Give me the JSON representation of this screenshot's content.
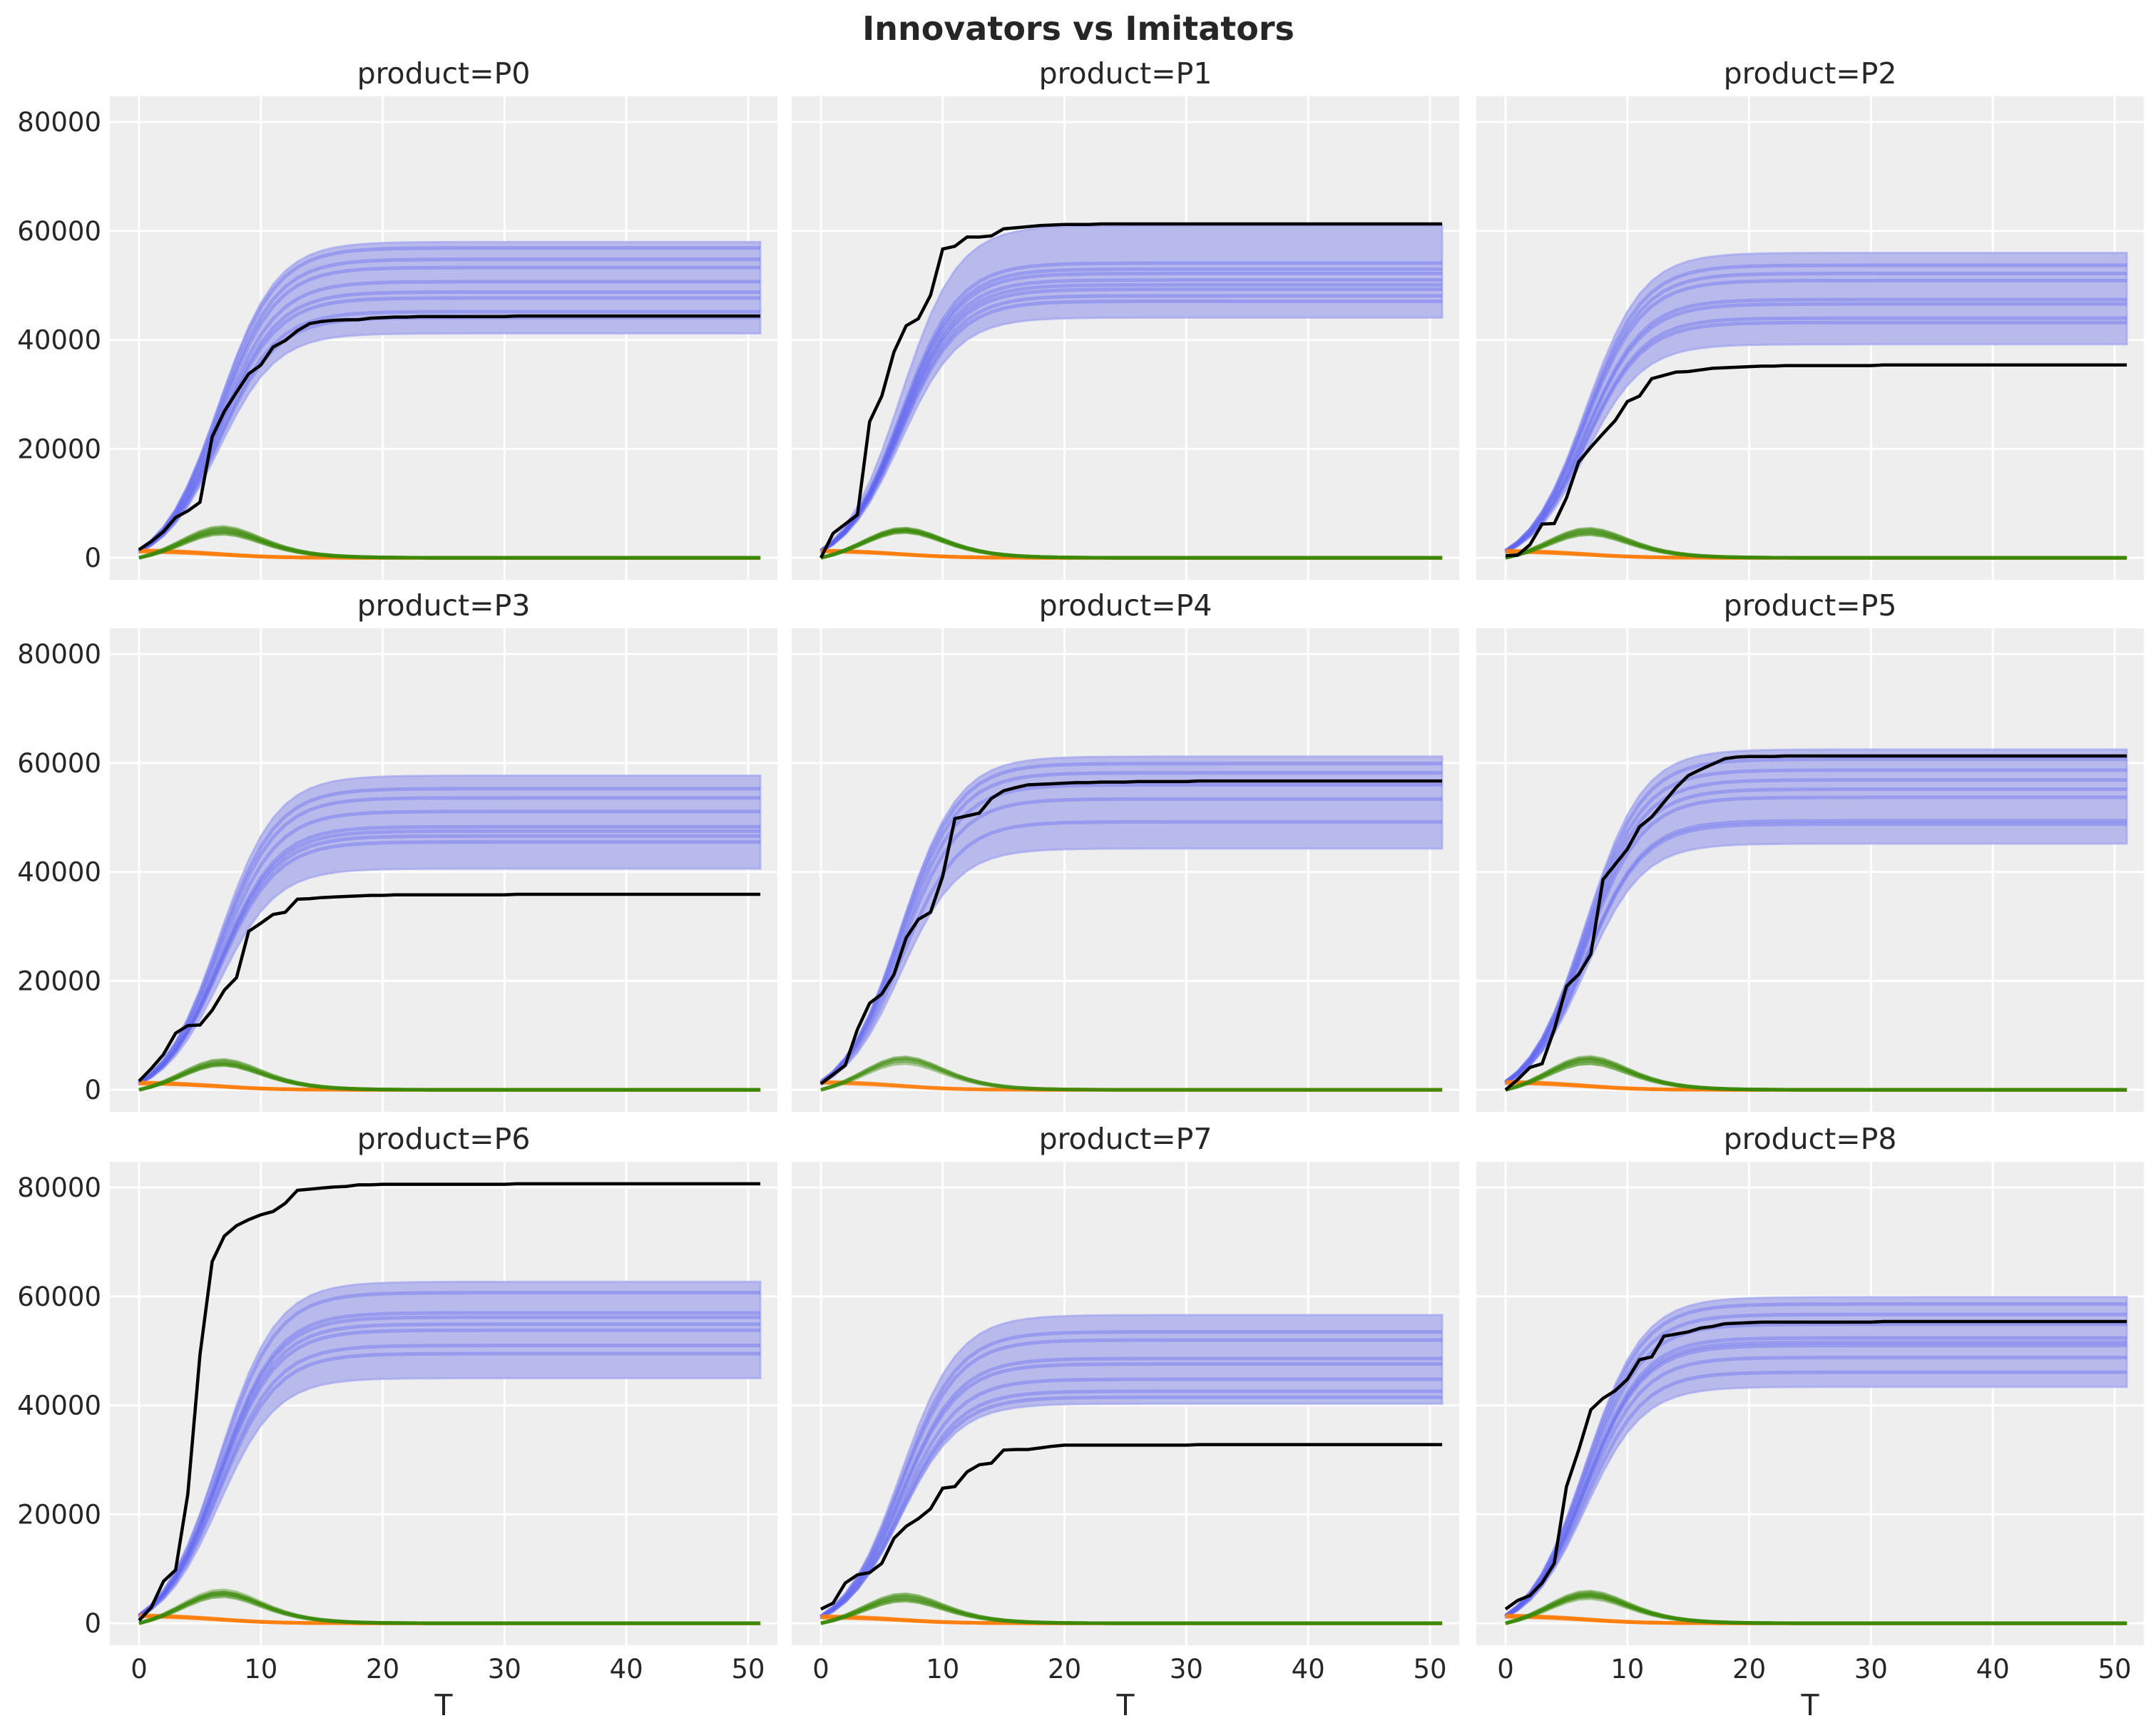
{
  "chart_data": {
    "type": "line",
    "title": "Innovators vs Imitators",
    "xlabel": "T",
    "ylabel": "",
    "xlim": [
      -2.4,
      52.4
    ],
    "ylim": [
      -4035,
      84735
    ],
    "xticks": [
      0,
      10,
      20,
      30,
      40,
      50
    ],
    "yticks": [
      0,
      20000,
      40000,
      60000,
      80000
    ],
    "grid": true,
    "legend": "none",
    "colors": {
      "background": "#eeeeee",
      "grid": "#ffffff",
      "posterior_band": "#b9baec",
      "posterior_samples": "#5a5ff0",
      "observed": "#000000",
      "imitators": "#3a8a07",
      "innovators": "#ff7f0e"
    },
    "panels": [
      {
        "title": "product=P0",
        "observed": [
          1500,
          3000,
          4800,
          7400,
          8600,
          10200,
          22200,
          26900,
          30400,
          33800,
          35400,
          38700,
          39900,
          41700,
          43000,
          43400,
          43600,
          43700,
          43700,
          44000,
          44100,
          44200,
          44200,
          44300,
          44300,
          44300,
          44300,
          44300,
          44300,
          44300,
          44300,
          44400,
          44400,
          44400,
          44400,
          44400,
          44400,
          44400,
          44400,
          44400,
          44400,
          44400,
          44400,
          44400,
          44400,
          44400,
          44400,
          44400,
          44400,
          44400,
          44400,
          44400
        ],
        "posterior_final_values": [
          56900,
          54800,
          53300,
          50700,
          48800,
          47700,
          45200,
          44100
        ],
        "hdi_final": [
          41200,
          58000
        ]
      },
      {
        "title": "product=P1",
        "observed": [
          0,
          4500,
          6200,
          7900,
          25000,
          29700,
          37800,
          42600,
          43900,
          48200,
          56700,
          57200,
          58900,
          58900,
          59100,
          60400,
          60600,
          60800,
          61000,
          61100,
          61200,
          61200,
          61200,
          61300,
          61300,
          61300,
          61300,
          61300,
          61300,
          61300,
          61300,
          61300,
          61300,
          61300,
          61300,
          61300,
          61300,
          61300,
          61300,
          61300,
          61300,
          61300,
          61300,
          61300,
          61300,
          61300,
          61300,
          61300,
          61300,
          61300,
          61300,
          61300
        ],
        "posterior_final_values": [
          54100,
          53000,
          52200,
          51000,
          50100,
          49300,
          48100,
          47100
        ],
        "hdi_final": [
          44100,
          61000
        ]
      },
      {
        "title": "product=P2",
        "observed": [
          400,
          500,
          2400,
          6200,
          6300,
          11000,
          17600,
          20300,
          22800,
          25200,
          28700,
          29700,
          32900,
          33500,
          34100,
          34200,
          34500,
          34800,
          34900,
          35000,
          35100,
          35200,
          35200,
          35300,
          35300,
          35300,
          35300,
          35300,
          35300,
          35300,
          35300,
          35400,
          35400,
          35400,
          35400,
          35400,
          35400,
          35400,
          35400,
          35400,
          35400,
          35400,
          35400,
          35400,
          35400,
          35400,
          35400,
          35400,
          35400,
          35400,
          35400,
          35400
        ],
        "posterior_final_values": [
          53700,
          52200,
          50900,
          47400,
          46600,
          44000,
          43200
        ],
        "hdi_final": [
          39200,
          56000
        ]
      },
      {
        "title": "product=P3",
        "observed": [
          1600,
          3900,
          6500,
          10400,
          11800,
          11900,
          14600,
          18300,
          20600,
          29100,
          30600,
          32200,
          32600,
          35000,
          35100,
          35300,
          35400,
          35500,
          35600,
          35700,
          35700,
          35800,
          35800,
          35800,
          35800,
          35800,
          35800,
          35800,
          35800,
          35800,
          35800,
          35900,
          35900,
          35900,
          35900,
          35900,
          35900,
          35900,
          35900,
          35900,
          35900,
          35900,
          35900,
          35900,
          35900,
          35900,
          35900,
          35900,
          35900,
          35900,
          35900,
          35900
        ],
        "posterior_final_values": [
          55300,
          53600,
          51100,
          48300,
          47500,
          46600,
          45500
        ],
        "hdi_final": [
          40600,
          57700
        ]
      },
      {
        "title": "product=P4",
        "observed": [
          1100,
          2800,
          4500,
          11100,
          15900,
          17600,
          21200,
          27900,
          31300,
          32600,
          39200,
          49800,
          50300,
          50800,
          53500,
          54900,
          55500,
          56000,
          56100,
          56200,
          56300,
          56400,
          56400,
          56500,
          56500,
          56500,
          56600,
          56600,
          56600,
          56600,
          56600,
          56700,
          56700,
          56700,
          56700,
          56700,
          56700,
          56700,
          56700,
          56700,
          56700,
          56700,
          56700,
          56700,
          56700,
          56700,
          56700,
          56700,
          56700,
          56700,
          56700,
          56700
        ],
        "posterior_final_values": [
          59900,
          58200,
          56000,
          53400,
          49200
        ],
        "hdi_final": [
          44300,
          61200
        ]
      },
      {
        "title": "product=P5",
        "observed": [
          0,
          1900,
          4100,
          4800,
          11100,
          19000,
          21200,
          24900,
          38600,
          41400,
          44200,
          48300,
          50100,
          52800,
          55500,
          57700,
          58800,
          59800,
          60800,
          61100,
          61200,
          61200,
          61200,
          61300,
          61300,
          61300,
          61300,
          61300,
          61300,
          61300,
          61300,
          61300,
          61300,
          61300,
          61300,
          61300,
          61300,
          61300,
          61300,
          61300,
          61300,
          61300,
          61300,
          61300,
          61300,
          61300,
          61300,
          61300,
          61300,
          61300,
          61300,
          61300
        ],
        "posterior_final_values": [
          60700,
          58700,
          56900,
          55200,
          53700,
          49400,
          48800
        ],
        "hdi_final": [
          45200,
          62500
        ]
      },
      {
        "title": "product=P6",
        "observed": [
          500,
          2900,
          7700,
          9800,
          23700,
          49300,
          66400,
          71100,
          73000,
          74100,
          75000,
          75600,
          77100,
          79500,
          79700,
          79900,
          80100,
          80200,
          80500,
          80500,
          80600,
          80600,
          80600,
          80600,
          80600,
          80600,
          80600,
          80600,
          80600,
          80600,
          80600,
          80700,
          80700,
          80700,
          80700,
          80700,
          80700,
          80700,
          80700,
          80700,
          80700,
          80700,
          80700,
          80700,
          80700,
          80700,
          80700,
          80700,
          80700,
          80700,
          80700,
          80700
        ],
        "posterior_final_values": [
          60700,
          57000,
          56200,
          54900,
          53800,
          51000,
          49500
        ],
        "hdi_final": [
          45000,
          62700
        ]
      },
      {
        "title": "product=P7",
        "observed": [
          2600,
          3700,
          7400,
          8900,
          9300,
          11000,
          15600,
          17800,
          19200,
          21000,
          24800,
          25100,
          27800,
          29100,
          29400,
          31800,
          31900,
          31900,
          32200,
          32500,
          32700,
          32700,
          32700,
          32700,
          32700,
          32700,
          32700,
          32700,
          32700,
          32700,
          32700,
          32800,
          32800,
          32800,
          32800,
          32800,
          32800,
          32800,
          32800,
          32800,
          32800,
          32800,
          32800,
          32800,
          32800,
          32800,
          32800,
          32800,
          32800,
          32800,
          32800,
          32800
        ],
        "posterior_final_values": [
          53500,
          52000,
          48600,
          47600,
          44800,
          42600,
          41500
        ],
        "hdi_final": [
          40300,
          56600
        ]
      },
      {
        "title": "product=P8",
        "observed": [
          2600,
          4200,
          5100,
          7400,
          11000,
          25100,
          31800,
          39200,
          41300,
          42700,
          44800,
          48400,
          48900,
          52700,
          53100,
          53500,
          54200,
          54500,
          55000,
          55100,
          55200,
          55300,
          55300,
          55300,
          55300,
          55300,
          55300,
          55300,
          55300,
          55300,
          55300,
          55400,
          55400,
          55400,
          55400,
          55400,
          55400,
          55400,
          55400,
          55400,
          55400,
          55400,
          55400,
          55400,
          55400,
          55400,
          55400,
          55400,
          55400,
          55400,
          55400,
          55400
        ],
        "posterior_final_values": [
          58600,
          56700,
          54900,
          52400,
          51600,
          51000,
          48800,
          46100
        ],
        "hdi_final": [
          43400,
          59900
        ]
      }
    ]
  }
}
